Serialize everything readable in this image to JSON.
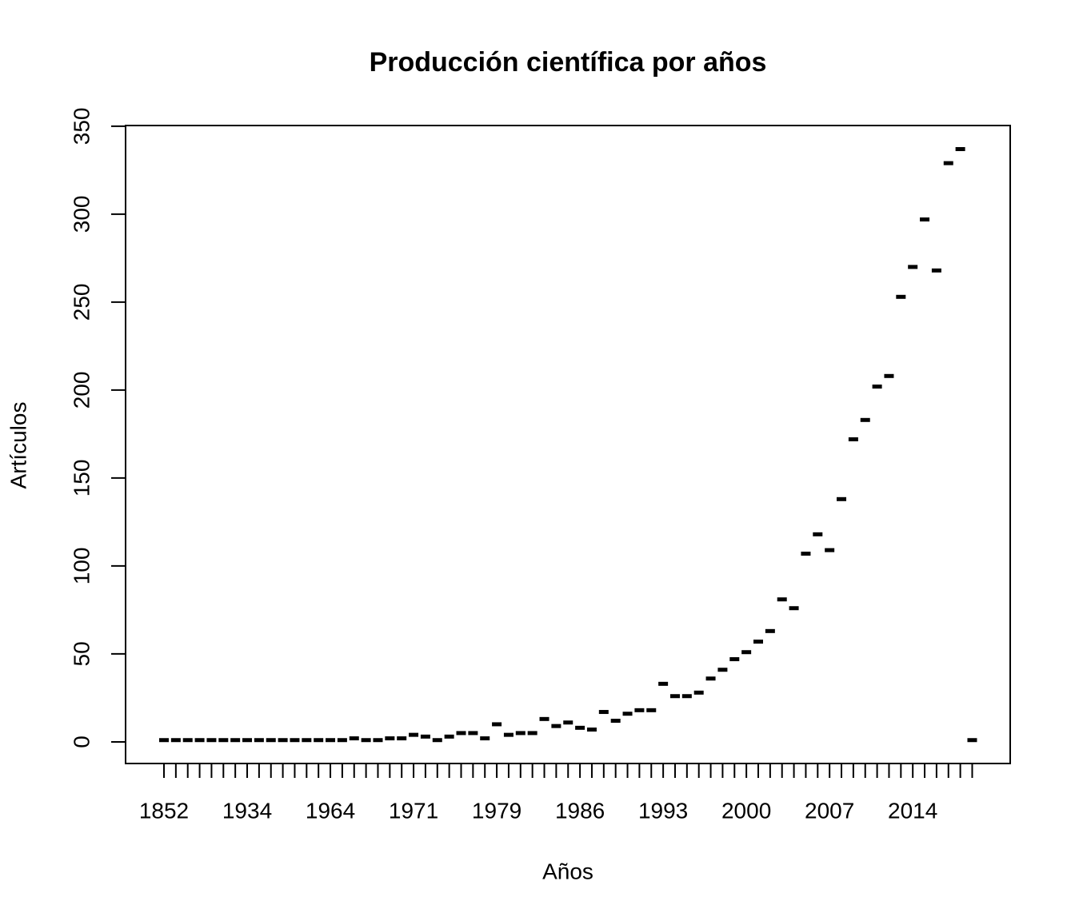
{
  "chart_data": {
    "type": "dash",
    "title": "Producción científica por años",
    "x_label": "Años",
    "y_label": "Artículos",
    "categories": [
      "1852",
      null,
      null,
      null,
      null,
      null,
      null,
      "1934",
      null,
      null,
      null,
      null,
      null,
      null,
      "1964",
      null,
      null,
      null,
      null,
      null,
      null,
      "1971",
      null,
      null,
      null,
      null,
      null,
      null,
      "1979",
      null,
      null,
      null,
      null,
      null,
      null,
      "1986",
      null,
      null,
      null,
      null,
      null,
      null,
      "1993",
      null,
      null,
      null,
      null,
      null,
      null,
      "2000",
      null,
      null,
      null,
      null,
      null,
      null,
      "2007",
      null,
      null,
      null,
      null,
      null,
      null,
      "2014",
      null,
      null,
      null,
      null,
      null
    ],
    "values": [
      1,
      1,
      1,
      1,
      1,
      1,
      1,
      1,
      1,
      1,
      1,
      1,
      1,
      1,
      1,
      1,
      2,
      1,
      1,
      2,
      2,
      4,
      3,
      1,
      3,
      5,
      5,
      2,
      10,
      4,
      5,
      5,
      13,
      9,
      11,
      8,
      7,
      17,
      12,
      16,
      18,
      18,
      33,
      26,
      26,
      28,
      36,
      41,
      47,
      51,
      57,
      63,
      81,
      76,
      107,
      118,
      109,
      138,
      172,
      183,
      202,
      208,
      253,
      270,
      297,
      268,
      329,
      337,
      1
    ],
    "color": "#000000",
    "ylim": [
      -12.3,
      350.4
    ],
    "yticks": [
      0,
      50,
      100,
      150,
      200,
      250,
      300,
      350
    ],
    "grid": false
  }
}
